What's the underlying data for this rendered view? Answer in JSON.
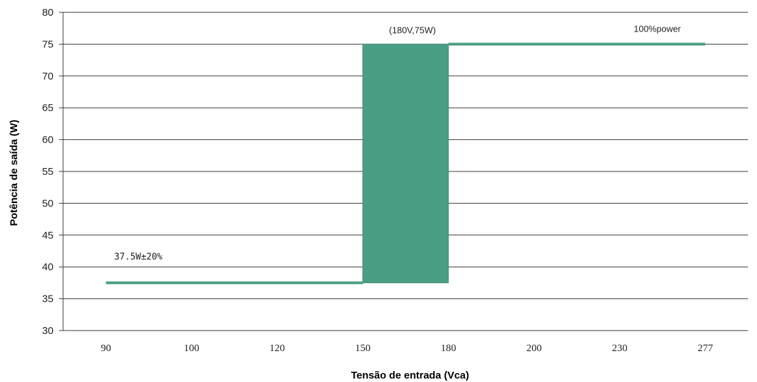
{
  "chart_data": {
    "type": "line",
    "xlabel": "Tensão de entrada (Vca)",
    "ylabel": "Potência de saída (W)",
    "categories": [
      "90",
      "100",
      "120",
      "150",
      "180",
      "200",
      "230",
      "277"
    ],
    "ylim": [
      30,
      80
    ],
    "yticks": [
      30,
      35,
      40,
      45,
      50,
      55,
      60,
      65,
      70,
      75,
      80
    ],
    "grid": "horizontal",
    "series": [
      {
        "color": "#4a9e85",
        "points": [
          {
            "x": "90",
            "y": 37.5
          },
          {
            "x": "150",
            "y": 37.5
          },
          {
            "x": "180",
            "y": 75
          },
          {
            "x": "277",
            "y": 75
          }
        ]
      }
    ],
    "transition_band": {
      "x_from": "150",
      "x_to": "180",
      "y_from": 37.5,
      "y_to": 75,
      "color": "#4a9e85"
    },
    "annotations": [
      {
        "id": "low",
        "text": "37.5W±20%",
        "x": "90",
        "y": 37.5
      },
      {
        "id": "knee",
        "text": "(180V,75W)",
        "x": "180",
        "y": 75
      },
      {
        "id": "full",
        "text": "100%power",
        "x": "277",
        "y": 75
      }
    ]
  }
}
